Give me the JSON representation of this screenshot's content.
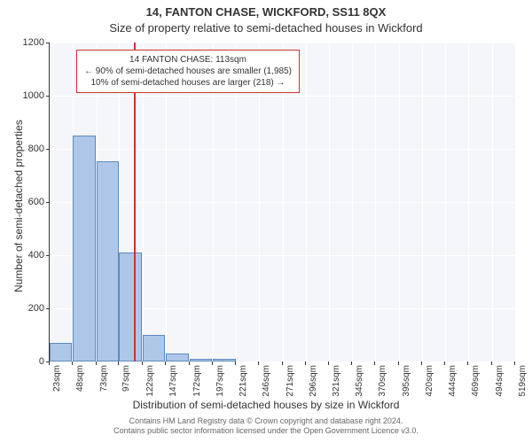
{
  "title_main": "14, FANTON CHASE, WICKFORD, SS11 8QX",
  "title_sub": "Size of property relative to semi-detached houses in Wickford",
  "ylabel": "Number of semi-detached properties",
  "xlabel": "Distribution of semi-detached houses by size in Wickford",
  "footer_line1": "Contains HM Land Registry data © Crown copyright and database right 2024.",
  "footer_line2": "Contains public sector information licensed under the Open Government Licence v3.0.",
  "chart": {
    "type": "histogram",
    "ylim": [
      0,
      1200
    ],
    "ytick_step": 200,
    "xticks": [
      23,
      48,
      73,
      97,
      122,
      147,
      172,
      197,
      221,
      246,
      271,
      296,
      321,
      345,
      370,
      395,
      420,
      444,
      469,
      494,
      519
    ],
    "xtick_unit": "sqm",
    "bar_color": "#aec7e8",
    "bar_border_color": "#5b8bbd",
    "background_color": "#f5f6fa",
    "grid_color": "#ffffff",
    "reference_line_color": "#cc3333",
    "reference_value": 113,
    "bars": [
      {
        "x": 23,
        "value": 70
      },
      {
        "x": 48,
        "value": 850
      },
      {
        "x": 73,
        "value": 755
      },
      {
        "x": 97,
        "value": 410
      },
      {
        "x": 122,
        "value": 100
      },
      {
        "x": 147,
        "value": 30
      },
      {
        "x": 172,
        "value": 10
      },
      {
        "x": 197,
        "value": 10
      }
    ],
    "annotation": {
      "line1": "14 FANTON CHASE: 113sqm",
      "line2": "← 90% of semi-detached houses are smaller (1,985)",
      "line3": "10% of semi-detached houses are larger (218) →"
    }
  }
}
